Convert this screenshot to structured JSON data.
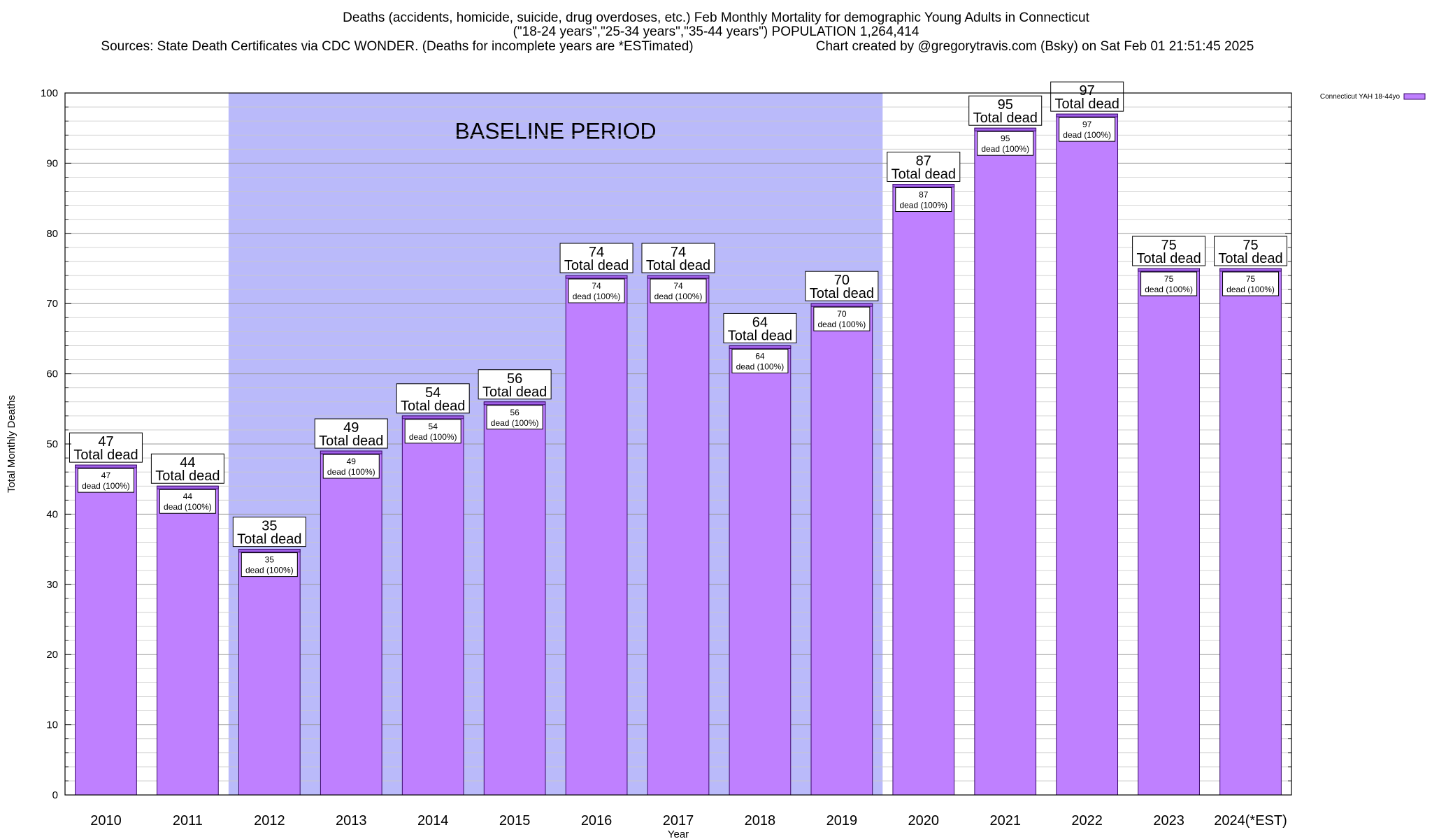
{
  "chart_data": {
    "type": "bar",
    "title_lines": [
      "Deaths (accidents, homicide, suicide, drug overdoses, etc.) Feb Monthly Mortality for demographic Young Adults in Connecticut",
      "(\"18-24 years\",\"25-34 years\",\"35-44 years\") POPULATION 1,264,414",
      "Sources: State Death Certificates via CDC WONDER. (Deaths for incomplete years are *ESTimated)",
      "Chart created by @gregorytravis.com (Bsky) on Sat Feb 01 21:51:45 2025"
    ],
    "xlabel": "Year",
    "ylabel": "Total Monthly Deaths",
    "ylim": [
      0,
      100
    ],
    "yticks": [
      "0",
      "10",
      "20",
      "30",
      "40",
      "50",
      "60",
      "70",
      "80",
      "90",
      "100"
    ],
    "categories": [
      "2010",
      "2011",
      "2012",
      "2013",
      "2014",
      "2015",
      "2016",
      "2017",
      "2018",
      "2019",
      "2020",
      "2021",
      "2022",
      "2023",
      "2024(*EST)"
    ],
    "series": [
      {
        "name": "Connecticut YAH 18-44yo",
        "values": [
          47,
          44,
          35,
          49,
          54,
          56,
          74,
          74,
          64,
          70,
          87,
          95,
          97,
          75,
          75
        ]
      }
    ],
    "top_labels": [
      [
        "47",
        "Total dead"
      ],
      [
        "44",
        "Total dead"
      ],
      [
        "35",
        "Total dead"
      ],
      [
        "49",
        "Total dead"
      ],
      [
        "54",
        "Total dead"
      ],
      [
        "56",
        "Total dead"
      ],
      [
        "74",
        "Total dead"
      ],
      [
        "74",
        "Total dead"
      ],
      [
        "64",
        "Total dead"
      ],
      [
        "70",
        "Total dead"
      ],
      [
        "87",
        "Total dead"
      ],
      [
        "95",
        "Total dead"
      ],
      [
        "97",
        "Total dead"
      ],
      [
        "75",
        "Total dead"
      ],
      [
        "75",
        "Total dead"
      ]
    ],
    "inner_labels": [
      [
        "47",
        "dead (100%)"
      ],
      [
        "44",
        "dead (100%)"
      ],
      [
        "35",
        "dead (100%)"
      ],
      [
        "49",
        "dead (100%)"
      ],
      [
        "54",
        "dead (100%)"
      ],
      [
        "56",
        "dead (100%)"
      ],
      [
        "74",
        "dead (100%)"
      ],
      [
        "74",
        "dead (100%)"
      ],
      [
        "64",
        "dead (100%)"
      ],
      [
        "70",
        "dead (100%)"
      ],
      [
        "87",
        "dead (100%)"
      ],
      [
        "95",
        "dead (100%)"
      ],
      [
        "97",
        "dead (100%)"
      ],
      [
        "75",
        "dead (100%)"
      ],
      [
        "75",
        "dead (100%)"
      ]
    ],
    "baseline_region": {
      "label": "BASELINE PERIOD",
      "from": "2012",
      "to": "2019"
    },
    "legend_position": "top-right",
    "grid": true,
    "colors": {
      "bar_fill": "#bf80ff",
      "bar_top_band": "#a060e8",
      "bar_stroke": "#3a0a6a",
      "baseline_fill": "#babafa",
      "grid": "#c8c8c8"
    }
  }
}
